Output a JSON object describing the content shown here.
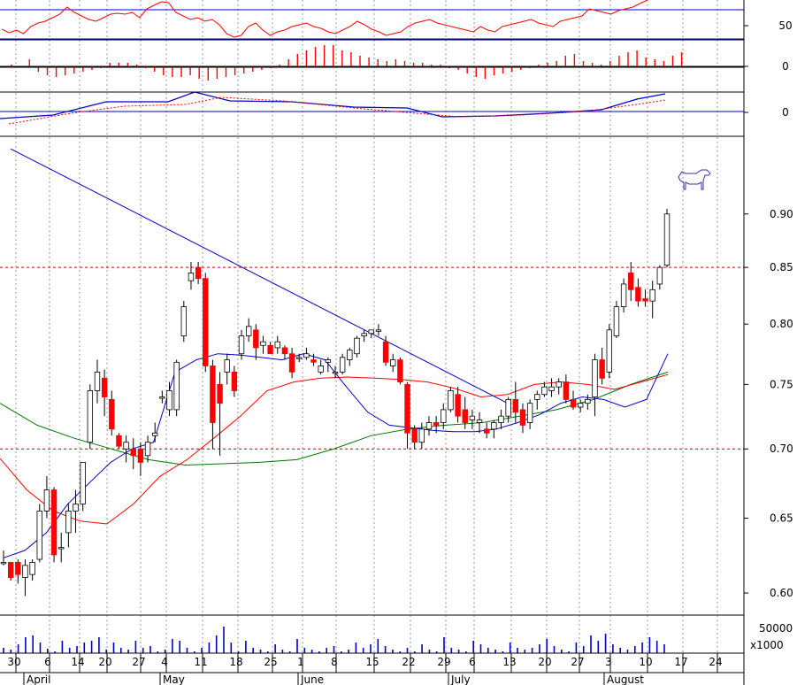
{
  "chart_data": {
    "type": "candlestick",
    "colors": {
      "up_body": "#ffffff",
      "down_body": "#ff0000",
      "neutral": "#000000",
      "ma_fast": "#0000cc",
      "ma_mid": "#ff0000",
      "ma_slow": "#007700",
      "trend": "#0000cc",
      "grid": "#999999",
      "hline": "#0000cc",
      "resistance": "#cc0000"
    },
    "price_axis": {
      "ticks": [
        "0.90",
        "0.85",
        "0.80",
        "0.75",
        "0.70",
        "0.65",
        "0.60"
      ],
      "ylim": [
        0.586,
        0.978
      ],
      "log_scale": true
    },
    "x_ticks": [
      "30",
      "6",
      "14",
      "20",
      "27",
      "4",
      "11",
      "18",
      "25",
      "1",
      "8",
      "15",
      "22",
      "29",
      "6",
      "13",
      "20",
      "27",
      "3",
      "10",
      "17",
      "24"
    ],
    "months": [
      "April",
      "May",
      "June",
      "July",
      "August"
    ],
    "rsi_panel": {
      "tick": "50",
      "line": "red"
    },
    "hist_panel": {
      "tick": "0"
    },
    "macd_panel": {
      "tick": "0"
    },
    "volume_panel": {
      "tick": "50000",
      "unit": "x1000"
    },
    "resistance_levels": [
      0.85,
      0.7
    ],
    "candles": [
      [
        0.62,
        0.628,
        0.618,
        0.62
      ],
      [
        0.62,
        0.62,
        0.608,
        0.61
      ],
      [
        0.62,
        0.622,
        0.606,
        0.612
      ],
      [
        0.61,
        0.622,
        0.598,
        0.618
      ],
      [
        0.612,
        0.622,
        0.608,
        0.62
      ],
      [
        0.622,
        0.66,
        0.62,
        0.655
      ],
      [
        0.655,
        0.68,
        0.65,
        0.67
      ],
      [
        0.67,
        0.672,
        0.62,
        0.625
      ],
      [
        0.63,
        0.64,
        0.62,
        0.63
      ],
      [
        0.64,
        0.66,
        0.63,
        0.655
      ],
      [
        0.655,
        0.67,
        0.64,
        0.66
      ],
      [
        0.66,
        0.69,
        0.655,
        0.69
      ],
      [
        0.705,
        0.75,
        0.7,
        0.745
      ],
      [
        0.745,
        0.77,
        0.735,
        0.76
      ],
      [
        0.755,
        0.762,
        0.725,
        0.74
      ],
      [
        0.738,
        0.745,
        0.71,
        0.715
      ],
      [
        0.71,
        0.712,
        0.7,
        0.702
      ],
      [
        0.7,
        0.71,
        0.69,
        0.705
      ],
      [
        0.7,
        0.708,
        0.685,
        0.695
      ],
      [
        0.7,
        0.705,
        0.68,
        0.69
      ],
      [
        0.695,
        0.71,
        0.69,
        0.705
      ],
      [
        0.71,
        0.72,
        0.705,
        0.712
      ],
      [
        0.74,
        0.745,
        0.735,
        0.74
      ],
      [
        0.73,
        0.752,
        0.725,
        0.745
      ],
      [
        0.73,
        0.77,
        0.725,
        0.768
      ],
      [
        0.79,
        0.82,
        0.785,
        0.815
      ],
      [
        0.838,
        0.855,
        0.83,
        0.845
      ],
      [
        0.85,
        0.855,
        0.835,
        0.84
      ],
      [
        0.84,
        0.845,
        0.76,
        0.765
      ],
      [
        0.765,
        0.77,
        0.7,
        0.72
      ],
      [
        0.75,
        0.76,
        0.695,
        0.735
      ],
      [
        0.76,
        0.775,
        0.75,
        0.77
      ],
      [
        0.76,
        0.765,
        0.74,
        0.745
      ],
      [
        0.775,
        0.795,
        0.77,
        0.79
      ],
      [
        0.79,
        0.805,
        0.785,
        0.798
      ],
      [
        0.795,
        0.8,
        0.77,
        0.78
      ],
      [
        0.782,
        0.79,
        0.775,
        0.785
      ],
      [
        0.782,
        0.785,
        0.775,
        0.775
      ],
      [
        0.78,
        0.79,
        0.775,
        0.785
      ],
      [
        0.78,
        0.782,
        0.77,
        0.775
      ],
      [
        0.775,
        0.78,
        0.755,
        0.76
      ],
      [
        0.772,
        0.775,
        0.768,
        0.772
      ],
      [
        0.772,
        0.78,
        0.77,
        0.775
      ],
      [
        0.77,
        0.775,
        0.765,
        0.768
      ],
      [
        0.76,
        0.77,
        0.758,
        0.765
      ],
      [
        0.768,
        0.772,
        0.76,
        0.77
      ],
      [
        0.76,
        0.765,
        0.755,
        0.76
      ],
      [
        0.76,
        0.775,
        0.758,
        0.772
      ],
      [
        0.77,
        0.78,
        0.765,
        0.778
      ],
      [
        0.775,
        0.79,
        0.772,
        0.788
      ],
      [
        0.79,
        0.795,
        0.785,
        0.792
      ],
      [
        0.792,
        0.795,
        0.788,
        0.795
      ],
      [
        0.795,
        0.8,
        0.79,
        0.795
      ],
      [
        0.785,
        0.79,
        0.765,
        0.768
      ],
      [
        0.765,
        0.775,
        0.76,
        0.77
      ],
      [
        0.77,
        0.772,
        0.75,
        0.752
      ],
      [
        0.75,
        0.752,
        0.7,
        0.712
      ],
      [
        0.715,
        0.718,
        0.7,
        0.705
      ],
      [
        0.705,
        0.72,
        0.7,
        0.715
      ],
      [
        0.715,
        0.725,
        0.71,
        0.72
      ],
      [
        0.72,
        0.725,
        0.712,
        0.718
      ],
      [
        0.72,
        0.735,
        0.715,
        0.73
      ],
      [
        0.73,
        0.748,
        0.728,
        0.745
      ],
      [
        0.742,
        0.748,
        0.72,
        0.725
      ],
      [
        0.73,
        0.74,
        0.715,
        0.72
      ],
      [
        0.722,
        0.73,
        0.715,
        0.725
      ],
      [
        0.72,
        0.728,
        0.712,
        0.722
      ],
      [
        0.715,
        0.72,
        0.708,
        0.712
      ],
      [
        0.715,
        0.722,
        0.708,
        0.72
      ],
      [
        0.72,
        0.73,
        0.715,
        0.725
      ],
      [
        0.725,
        0.74,
        0.72,
        0.738
      ],
      [
        0.738,
        0.752,
        0.72,
        0.728
      ],
      [
        0.73,
        0.735,
        0.712,
        0.718
      ],
      [
        0.72,
        0.738,
        0.715,
        0.735
      ],
      [
        0.738,
        0.745,
        0.73,
        0.742
      ],
      [
        0.742,
        0.752,
        0.74,
        0.748
      ],
      [
        0.745,
        0.755,
        0.74,
        0.748
      ],
      [
        0.748,
        0.755,
        0.742,
        0.752
      ],
      [
        0.752,
        0.758,
        0.735,
        0.738
      ],
      [
        0.738,
        0.745,
        0.73,
        0.732
      ],
      [
        0.732,
        0.738,
        0.728,
        0.735
      ],
      [
        0.735,
        0.742,
        0.73,
        0.738
      ],
      [
        0.74,
        0.775,
        0.725,
        0.77
      ],
      [
        0.77,
        0.78,
        0.75,
        0.755
      ],
      [
        0.76,
        0.8,
        0.755,
        0.795
      ],
      [
        0.79,
        0.82,
        0.788,
        0.815
      ],
      [
        0.815,
        0.84,
        0.81,
        0.835
      ],
      [
        0.845,
        0.855,
        0.82,
        0.83
      ],
      [
        0.832,
        0.84,
        0.815,
        0.82
      ],
      [
        0.822,
        0.83,
        0.815,
        0.82
      ],
      [
        0.82,
        0.838,
        0.805,
        0.83
      ],
      [
        0.835,
        0.852,
        0.83,
        0.85
      ],
      [
        0.852,
        0.905,
        0.85,
        0.9
      ]
    ],
    "ma_fast_values": [
      0.623,
      0.628,
      0.64,
      0.66,
      0.675,
      0.69,
      0.7,
      0.705,
      0.76,
      0.77,
      0.775,
      0.774,
      0.772,
      0.77,
      0.775,
      0.77,
      0.748,
      0.728,
      0.718,
      0.716,
      0.714,
      0.713,
      0.713,
      0.715,
      0.72,
      0.726,
      0.735,
      0.74,
      0.738,
      0.732,
      0.738,
      0.775
    ],
    "ma_mid_values": [
      0.693,
      0.67,
      0.655,
      0.648,
      0.646,
      0.66,
      0.68,
      0.692,
      0.708,
      0.725,
      0.745,
      0.752,
      0.755,
      0.756,
      0.755,
      0.754,
      0.752,
      0.747,
      0.74,
      0.742,
      0.75,
      0.752,
      0.75,
      0.746,
      0.752,
      0.758
    ],
    "ma_slow_values": [
      0.735,
      0.718,
      0.708,
      0.7,
      0.692,
      0.688,
      0.689,
      0.69,
      0.692,
      0.7,
      0.71,
      0.715,
      0.718,
      0.72,
      0.725,
      0.73,
      0.738,
      0.75,
      0.76
    ],
    "trend_line": {
      "from": [
        0,
        0.965
      ],
      "to": [
        64,
        0.735
      ]
    }
  }
}
